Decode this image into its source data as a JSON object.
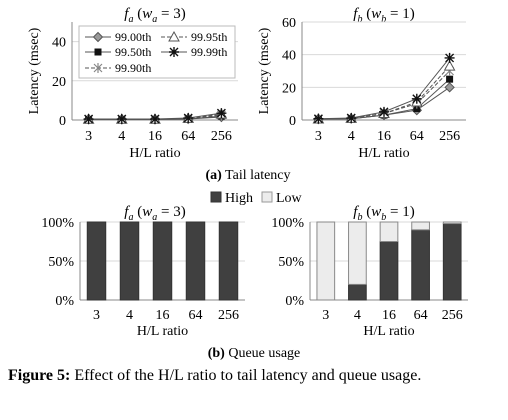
{
  "chart_data": [
    {
      "type": "line",
      "title": "f_a (w_a = 3)",
      "xlabel": "H/L ratio",
      "ylabel": "Latency (msec)",
      "categories": [
        "3",
        "4",
        "16",
        "64",
        "256"
      ],
      "ylim": [
        0,
        50
      ],
      "yticks": [
        "0",
        "20",
        "40"
      ],
      "grid": true,
      "legend_position": "top-left",
      "series": [
        {
          "name": "99.00th",
          "values": [
            0.3,
            0.3,
            0.3,
            0.5,
            1.5
          ]
        },
        {
          "name": "99.50th",
          "values": [
            0.3,
            0.3,
            0.3,
            0.5,
            2.0
          ]
        },
        {
          "name": "99.90th",
          "values": [
            0.4,
            0.4,
            0.4,
            0.7,
            2.5
          ]
        },
        {
          "name": "99.95th",
          "values": [
            0.4,
            0.4,
            0.4,
            0.8,
            3.0
          ]
        },
        {
          "name": "99.99th",
          "values": [
            0.5,
            0.5,
            0.5,
            1.0,
            3.5
          ]
        }
      ]
    },
    {
      "type": "line",
      "title": "f_b (w_b = 1)",
      "xlabel": "H/L ratio",
      "ylabel": "Latency (msec)",
      "categories": [
        "3",
        "4",
        "16",
        "64",
        "256"
      ],
      "ylim": [
        0,
        60
      ],
      "yticks": [
        "0",
        "20",
        "40",
        "60"
      ],
      "grid": true,
      "series": [
        {
          "name": "99.00th",
          "values": [
            0.5,
            0.8,
            3,
            6,
            20
          ]
        },
        {
          "name": "99.50th",
          "values": [
            0.5,
            0.8,
            3,
            7,
            25
          ]
        },
        {
          "name": "99.90th",
          "values": [
            0.6,
            1.0,
            4,
            10,
            30
          ]
        },
        {
          "name": "99.95th",
          "values": [
            0.6,
            1.0,
            4,
            11,
            33
          ]
        },
        {
          "name": "99.99th",
          "values": [
            0.8,
            1.2,
            5,
            13,
            38
          ]
        }
      ]
    },
    {
      "type": "bar",
      "stacked": true,
      "title": "f_a (w_a = 3)",
      "xlabel": "H/L ratio",
      "categories": [
        "3",
        "4",
        "16",
        "64",
        "256"
      ],
      "ylim": [
        0,
        100
      ],
      "yticks": [
        "0%",
        "50%",
        "100%"
      ],
      "legend_position": "top-center",
      "series": [
        {
          "name": "High",
          "values": [
            100,
            100,
            100,
            100,
            100
          ]
        },
        {
          "name": "Low",
          "values": [
            0,
            0,
            0,
            0,
            0
          ]
        }
      ]
    },
    {
      "type": "bar",
      "stacked": true,
      "title": "f_b (w_b = 1)",
      "xlabel": "H/L ratio",
      "categories": [
        "3",
        "4",
        "16",
        "64",
        "256"
      ],
      "ylim": [
        0,
        100
      ],
      "yticks": [
        "0%",
        "50%",
        "100%"
      ],
      "series": [
        {
          "name": "High",
          "values": [
            0,
            20,
            75,
            90,
            98
          ]
        },
        {
          "name": "Low",
          "values": [
            100,
            80,
            25,
            10,
            2
          ]
        }
      ]
    }
  ],
  "subcaptions": {
    "a_label": "(a)",
    "a_text": " Tail latency",
    "b_label": "(b)",
    "b_text": " Queue usage"
  },
  "figure_caption": {
    "label": "Figure 5:",
    "text": " Effect of the H/L ratio to tail latency and queue usage."
  },
  "colors": {
    "high": "#404040",
    "low": "#ececec",
    "line": "#555555",
    "grid": "#d9d9d9"
  }
}
